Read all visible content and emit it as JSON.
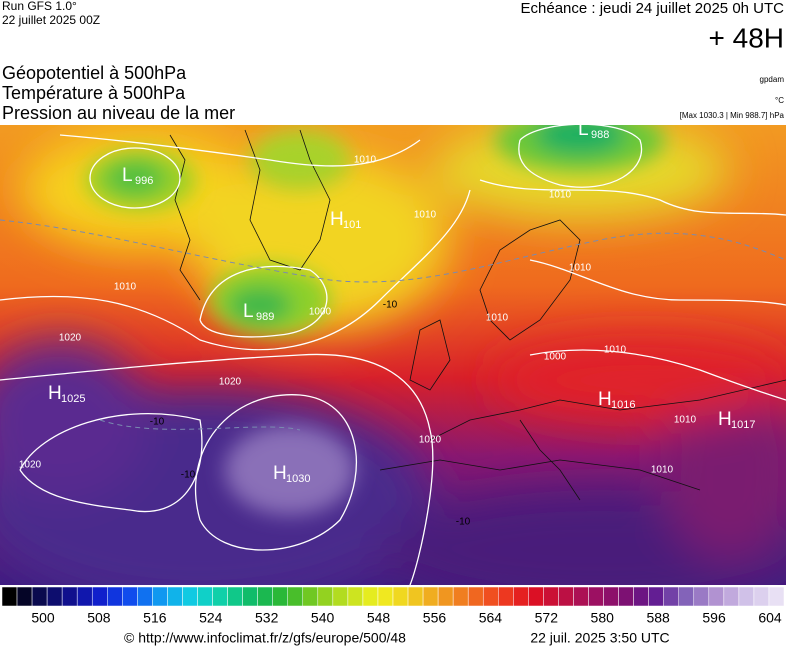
{
  "header": {
    "run": "Run GFS 1.0°",
    "run_date": "22 juillet 2025 00Z",
    "valid": "Echéance : jeudi 24 juillet 2025 0h UTC",
    "lead": "+ 48H"
  },
  "params": [
    "Géopotentiel à 500hPa",
    "Température à 500hPa",
    "Pression au niveau de la mer"
  ],
  "units": {
    "geopotential": "gpdam",
    "temperature": "°C",
    "pressure": "[Max 1030.3 | Min 988.7] hPa"
  },
  "centers": [
    {
      "letter": "L",
      "value": "996"
    },
    {
      "letter": "L",
      "value": "988"
    },
    {
      "letter": "H",
      "value": "101"
    },
    {
      "letter": "L",
      "value": "989"
    },
    {
      "letter": "H",
      "value": "1025"
    },
    {
      "letter": "H",
      "value": "1030"
    },
    {
      "letter": "H",
      "value": "1016"
    },
    {
      "letter": "H",
      "value": "1017"
    }
  ],
  "isobar_labels": [
    "1010",
    "1010",
    "1010",
    "1010",
    "1010",
    "1020",
    "1020",
    "1020",
    "1000",
    "1010",
    "1010",
    "1010",
    "1020",
    "1000",
    "1010"
  ],
  "temp_labels": [
    "-10",
    "-10",
    "-10",
    "-10"
  ],
  "colorbar": {
    "labels": [
      "500",
      "508",
      "516",
      "524",
      "532",
      "540",
      "548",
      "556",
      "564",
      "572",
      "580",
      "588",
      "596",
      "604"
    ]
  },
  "footer": {
    "url": "© http://www.infoclimat.fr/z/gfs/europe/500/48",
    "time": "22 juil. 2025  3:50 UTC"
  }
}
